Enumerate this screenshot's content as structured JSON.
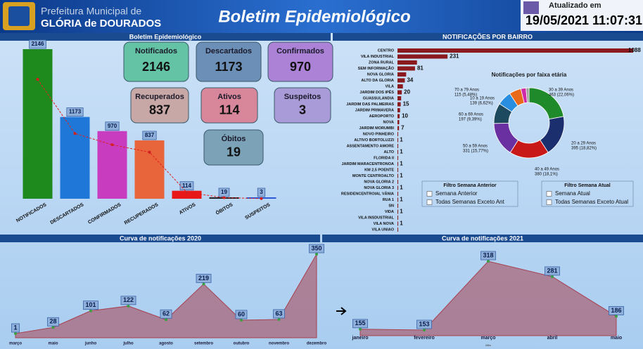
{
  "header": {
    "org_line1": "Prefeitura Municipal de",
    "org_line2": "GLÓRIA de DOURADOS",
    "title": "Boletim Epidemiológico",
    "updated_label": "Atualizado em",
    "updated_at": "19/05/2021 11:07:31"
  },
  "cards": [
    {
      "label": "Notificados",
      "value": 2146,
      "color": "#63c3a4"
    },
    {
      "label": "Descartados",
      "value": 1173,
      "color": "#6c8fb8"
    },
    {
      "label": "Confirmados",
      "value": 970,
      "color": "#ab82d6"
    },
    {
      "label": "Recuperados",
      "value": 837,
      "color": "#c8a8a6"
    },
    {
      "label": "Ativos",
      "value": 114,
      "color": "#d8879a"
    },
    {
      "label": "Suspeitos",
      "value": 3,
      "color": "#a99ad8"
    },
    {
      "label": "Óbitos",
      "value": 19,
      "color": "#7ba2b7"
    }
  ],
  "chart_data": [
    {
      "type": "bar",
      "title": "Boletim Epidemiológico",
      "categories": [
        "NOTIFICADOS",
        "DESCARTADOS",
        "CONFIRMADOS",
        "RECUPERADOS",
        "ATIVOS",
        "ÓBITOS",
        "SUSPEITOS"
      ],
      "values": [
        2146,
        1173,
        970,
        837,
        114,
        19,
        3
      ],
      "colors": [
        "#1e8a1e",
        "#1f78d8",
        "#c83cc0",
        "#e8643a",
        "#e81818",
        "#202020",
        "#2a5ad8"
      ]
    },
    {
      "type": "hbar",
      "title": "NOTIFICAÇÕES POR BAIRRO",
      "color": "#8b1a1f",
      "categories": [
        "CENTRO",
        "VILA INDUSTRIAL",
        "ZONA RURAL",
        "SEM INFORMAÇÃO",
        "NOVA GLORIA",
        "ALTO DA GLORIA",
        "VILA",
        "JARDIM DOS IPÊS",
        "GUASSULANDIA",
        "JARDIM DAS PALMEIRAS",
        "JARDIM PRIMAVERA",
        "AEROPORTO",
        "NOVA",
        "JARDIM MORUMBI",
        "NOVO PINHEIRO",
        "ALTIVO BORTOLUZZI",
        "ASSENTAMENTO AMORE",
        "ALTO",
        "FLORIDA II",
        "JARDIM MARACENTRONOA",
        "KM 2,5 POENTE",
        "MONTE CENTROALTO",
        "NOVA GLORIA 2",
        "NOVA GLORIA 3",
        "RESIDENCENTROIAL VÂNIA",
        "RUA 1",
        "SN",
        "VIDA",
        "VILA INSDUSTRIAL",
        "VILA NOVA",
        "VILA UNIAO"
      ],
      "values": [
        1088,
        231,
        90,
        81,
        40,
        34,
        25,
        20,
        17,
        15,
        12,
        10,
        8,
        7,
        3,
        1,
        1,
        1,
        1,
        1,
        1,
        1,
        1,
        1,
        1,
        1,
        1,
        1,
        1,
        1,
        1
      ],
      "value_labels": [
        "1088",
        "231",
        null,
        "81",
        null,
        "34",
        null,
        "20",
        null,
        "15",
        null,
        "10",
        null,
        "7",
        null,
        "1",
        null,
        "1",
        null,
        "1",
        null,
        "1",
        null,
        "1",
        null,
        "1",
        null,
        "1",
        null,
        "1",
        null
      ]
    },
    {
      "type": "donut",
      "title": "Notificações por faixa etária",
      "categories": [
        "30 a 39 Anos",
        "20 a 29 Anos",
        "40 a 49 Anos",
        "50 a 59 Anos",
        "60 a 69 Anos",
        "10 a 19 Anos",
        "70 a 79 Anos",
        null,
        null
      ],
      "values": [
        463,
        395,
        380,
        331,
        197,
        139,
        115,
        50,
        29
      ],
      "value_labels": [
        "463 (22,06%)",
        "395 (18,82%)",
        "380 (18,1%)",
        "331 (15,77%)",
        "197 (9,39%)",
        "139 (6,62%)",
        "115 (5,48%)",
        null,
        null
      ],
      "colors": [
        "#1f8a2a",
        "#1b2f6e",
        "#c81818",
        "#6a2fa0",
        "#1d4a5e",
        "#2a8ee0",
        "#e86a1a",
        "#d02aa8",
        "#a0a0a0"
      ]
    },
    {
      "type": "area",
      "title": "Curva de notificações 2020",
      "categories": [
        "março",
        "maio",
        "junho",
        "julho",
        "agosto",
        "setembro",
        "outubro",
        "novembro",
        "dezembro"
      ],
      "values": [
        1,
        28,
        101,
        122,
        62,
        219,
        60,
        63,
        350
      ],
      "color": "#a8404f"
    },
    {
      "type": "area",
      "title": "Curva de notificações 2021",
      "x_label": "Mês",
      "categories": [
        "janeiro",
        "fevereiro",
        "março",
        "abril",
        "maio"
      ],
      "values": [
        155,
        153,
        318,
        281,
        186
      ],
      "color": "#a8404f"
    }
  ],
  "filters": [
    {
      "title": "Filtro Semana Anterior",
      "options": [
        "Semana Anterior",
        "Todas Semanas Exceto Ant"
      ]
    },
    {
      "title": "Filtro Semana Atual",
      "options": [
        "Semana Atual",
        "Todas Semanas Exceto Atual"
      ]
    }
  ]
}
